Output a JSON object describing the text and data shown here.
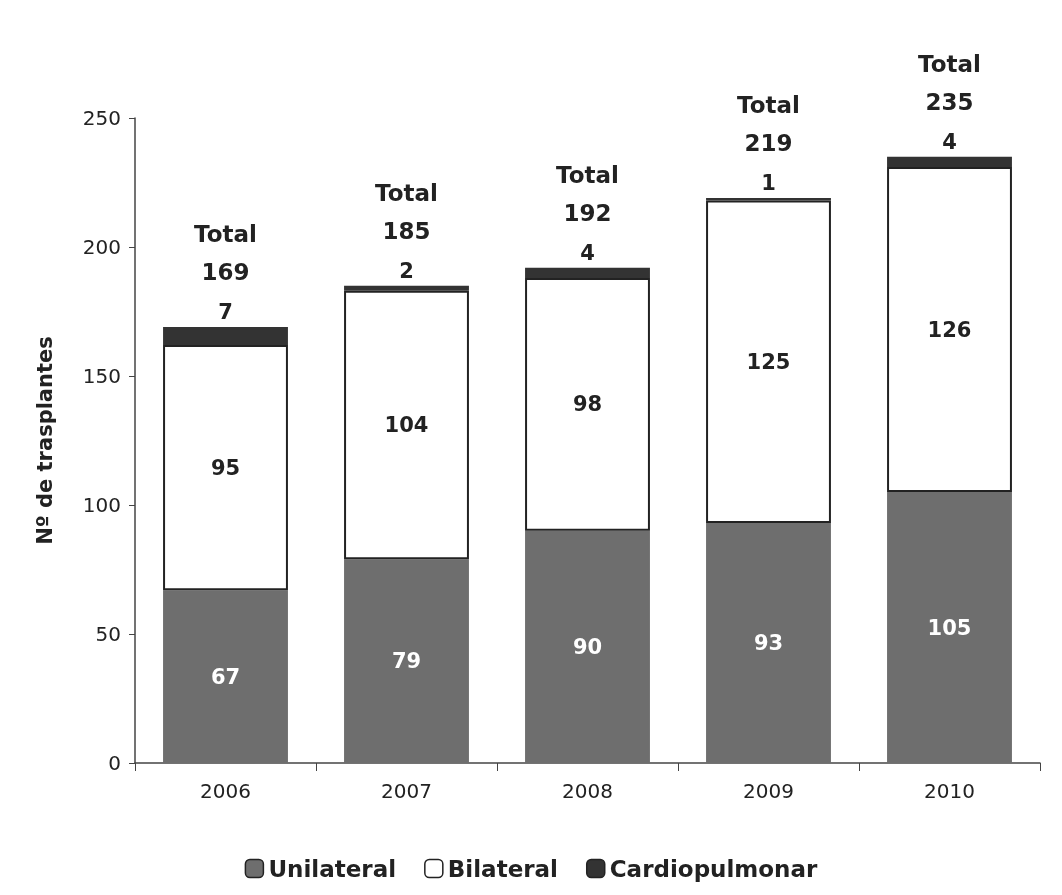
{
  "chart_data": {
    "type": "bar",
    "stacked": true,
    "ylabel": "Nº de trasplantes",
    "categories": [
      "2006",
      "2007",
      "2008",
      "2009",
      "2010"
    ],
    "series": [
      {
        "name": "Unilateral",
        "color": "#6e6e6e",
        "values": [
          67,
          79,
          90,
          93,
          105
        ]
      },
      {
        "name": "Bilateral",
        "color": "#ffffff",
        "values": [
          95,
          104,
          98,
          125,
          126
        ]
      },
      {
        "name": "Cardiopulmonar",
        "color": "#333333",
        "values": [
          7,
          2,
          4,
          1,
          4
        ]
      }
    ],
    "ylim": [
      0,
      250
    ],
    "yticks": [
      0,
      50,
      100,
      150,
      200,
      250
    ],
    "grid": false,
    "legend": "bottom",
    "data_labels": true,
    "totals": [
      "Total 169",
      "Total 185",
      "Total 192",
      "Total 219",
      "Total 235"
    ]
  }
}
